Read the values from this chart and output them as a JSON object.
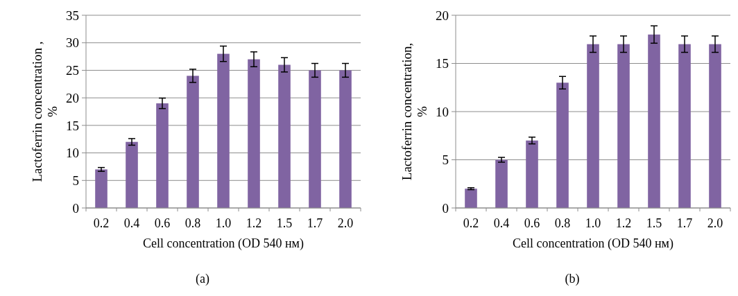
{
  "chart_data": [
    {
      "type": "bar",
      "title": "(a)",
      "xlabel": "Cell concentration (OD 540 нм)",
      "ylabel": "Lactoferrin concentration ,\n%",
      "categories": [
        "0.2",
        "0.4",
        "0.6",
        "0.8",
        "1.0",
        "1.2",
        "1.5",
        "1.7",
        "2.0"
      ],
      "color": "#8064a2",
      "values": [
        7,
        12,
        19,
        24,
        28,
        27,
        26,
        25,
        25
      ],
      "errors": [
        0.35,
        0.6,
        0.95,
        1.2,
        1.4,
        1.35,
        1.3,
        1.25,
        1.25
      ],
      "ylim": [
        0,
        35
      ],
      "yticks": [
        0,
        5,
        10,
        15,
        20,
        25,
        30,
        35
      ],
      "grid": "y"
    },
    {
      "type": "bar",
      "title": "(b)",
      "xlabel": "Cell concentration (OD 540 нм)",
      "ylabel": "Lactoferrin concentration,\n%",
      "categories": [
        "0.2",
        "0.4",
        "0.6",
        "0.8",
        "1.0",
        "1.2",
        "1.5",
        "1.7",
        "2.0"
      ],
      "color": "#8064a2",
      "values": [
        2,
        5,
        7,
        13,
        17,
        17,
        18,
        17,
        17
      ],
      "errors": [
        0.1,
        0.25,
        0.35,
        0.65,
        0.85,
        0.85,
        0.9,
        0.85,
        0.85
      ],
      "ylim": [
        0,
        20
      ],
      "yticks": [
        0,
        5,
        10,
        15,
        20
      ],
      "grid": "y"
    }
  ]
}
